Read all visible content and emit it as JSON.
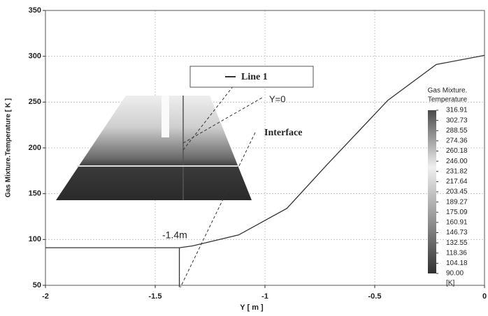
{
  "chart_data": {
    "type": "line",
    "xlabel": "Y [ m ]",
    "ylabel": "Gas Mixture.Temperature [ K ]",
    "xlim": [
      -2,
      0
    ],
    "ylim": [
      50,
      350
    ],
    "xticks": [
      -2,
      -1.5,
      -1,
      -0.5,
      0
    ],
    "yticks": [
      50,
      100,
      150,
      200,
      250,
      300,
      350
    ],
    "grid": true,
    "series": [
      {
        "name": "Line 1",
        "color": "#333333",
        "x": [
          -2,
          -1.39,
          -1.39,
          -1.39,
          -1.33,
          -1.12,
          -0.9,
          -0.72,
          -0.44,
          -0.22,
          0
        ],
        "values": [
          91,
          91,
          48,
          91,
          93,
          105,
          134,
          181,
          252,
          291,
          301
        ]
      }
    ],
    "annotations": [
      "Y=0",
      "Interface",
      "-1.4m"
    ],
    "colorbar": {
      "title": [
        "Gas Mixture.",
        "Temperature"
      ],
      "unit": "[K]",
      "ticks": [
        316.91,
        302.73,
        288.55,
        274.36,
        260.18,
        {
          "value": 246,
          "label": "246.00"
        },
        231.82,
        217.64,
        203.45,
        189.27,
        175.09,
        160.91,
        146.73,
        132.55,
        118.36,
        104.18,
        {
          "value": 90,
          "label": "90.00"
        }
      ]
    }
  }
}
